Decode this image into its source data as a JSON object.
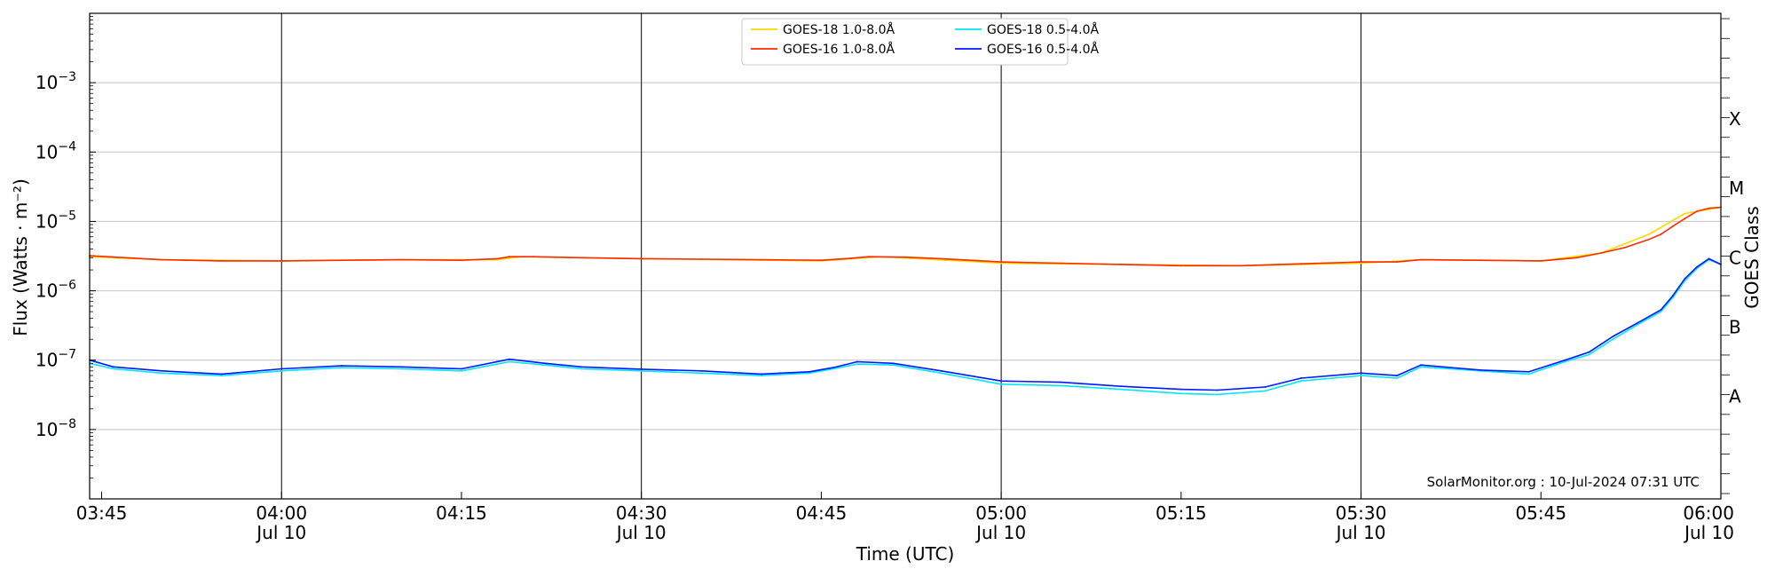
{
  "chart_data": {
    "type": "line",
    "title": "",
    "xlabel": "Time (UTC)",
    "ylabel": "Flux (Watts · m⁻²)",
    "right_ylabel": "GOES Class",
    "yscale": "log",
    "ylim": [
      1e-09,
      0.01
    ],
    "xlim": [
      "2024-07-10 03:44",
      "2024-07-10 06:00"
    ],
    "grid": "horizontal",
    "legend_position": "top-center",
    "x_ticks": [
      {
        "t": "2024-07-10 03:45",
        "label": "03:45",
        "sub": ""
      },
      {
        "t": "2024-07-10 04:00",
        "label": "04:00",
        "sub": "Jul 10"
      },
      {
        "t": "2024-07-10 04:15",
        "label": "04:15",
        "sub": ""
      },
      {
        "t": "2024-07-10 04:30",
        "label": "04:30",
        "sub": "Jul 10"
      },
      {
        "t": "2024-07-10 04:45",
        "label": "04:45",
        "sub": ""
      },
      {
        "t": "2024-07-10 05:00",
        "label": "05:00",
        "sub": "Jul 10"
      },
      {
        "t": "2024-07-10 05:15",
        "label": "05:15",
        "sub": ""
      },
      {
        "t": "2024-07-10 05:30",
        "label": "05:30",
        "sub": "Jul 10"
      },
      {
        "t": "2024-07-10 05:45",
        "label": "05:45",
        "sub": ""
      },
      {
        "t": "2024-07-10 06:00",
        "label": "06:00",
        "sub": "Jul 10"
      }
    ],
    "y_ticks": [
      {
        "value": 1e-08,
        "mant": "10",
        "exp": "−8"
      },
      {
        "value": 1e-07,
        "mant": "10",
        "exp": "−7"
      },
      {
        "value": 1e-06,
        "mant": "10",
        "exp": "−6"
      },
      {
        "value": 1e-05,
        "mant": "10",
        "exp": "−5"
      },
      {
        "value": 0.0001,
        "mant": "10",
        "exp": "−4"
      },
      {
        "value": 0.001,
        "mant": "10",
        "exp": "−3"
      }
    ],
    "vlines": [
      "2024-07-10 04:00",
      "2024-07-10 04:30",
      "2024-07-10 05:00",
      "2024-07-10 05:30",
      "2024-07-10 06:00"
    ],
    "class_labels": [
      {
        "label": "A",
        "at": 3e-08
      },
      {
        "label": "B",
        "at": 3e-07
      },
      {
        "label": "C",
        "at": 3e-06
      },
      {
        "label": "M",
        "at": 3e-05
      },
      {
        "label": "X",
        "at": 0.0003
      }
    ],
    "annotation": "SolarMonitor.org : 10-Jul-2024 07:31 UTC",
    "series": [
      {
        "name": "GOES-18 1.0-8.0Å",
        "color": "#ffd700",
        "x": [
          "2024-07-10 03:44",
          "2024-07-10 03:50",
          "2024-07-10 04:00",
          "2024-07-10 04:10",
          "2024-07-10 04:18",
          "2024-07-10 04:20",
          "2024-07-10 04:30",
          "2024-07-10 04:45",
          "2024-07-10 04:50",
          "2024-07-10 05:00",
          "2024-07-10 05:10",
          "2024-07-10 05:20",
          "2024-07-10 05:25",
          "2024-07-10 05:30",
          "2024-07-10 05:35",
          "2024-07-10 05:45",
          "2024-07-10 05:50",
          "2024-07-10 05:54",
          "2024-07-10 05:57",
          "2024-07-10 06:00"
        ],
        "y": [
          3.1e-06,
          2.8e-06,
          2.7e-06,
          2.8e-06,
          2.8e-06,
          3.1e-06,
          2.9e-06,
          2.7e-06,
          3.1e-06,
          2.5e-06,
          2.4e-06,
          2.3e-06,
          2.4e-06,
          2.5e-06,
          2.8e-06,
          2.7e-06,
          3.5e-06,
          6.5e-06,
          1.3e-05,
          1.6e-05
        ]
      },
      {
        "name": "GOES-16 1.0-8.0Å",
        "color": "#ff2a00",
        "x": [
          "2024-07-10 03:44",
          "2024-07-10 03:47",
          "2024-07-10 03:50",
          "2024-07-10 03:55",
          "2024-07-10 04:00",
          "2024-07-10 04:05",
          "2024-07-10 04:10",
          "2024-07-10 04:15",
          "2024-07-10 04:18",
          "2024-07-10 04:19",
          "2024-07-10 04:21",
          "2024-07-10 04:25",
          "2024-07-10 04:30",
          "2024-07-10 04:35",
          "2024-07-10 04:40",
          "2024-07-10 04:45",
          "2024-07-10 04:47",
          "2024-07-10 04:49",
          "2024-07-10 04:52",
          "2024-07-10 04:55",
          "2024-07-10 05:00",
          "2024-07-10 05:05",
          "2024-07-10 05:10",
          "2024-07-10 05:15",
          "2024-07-10 05:20",
          "2024-07-10 05:25",
          "2024-07-10 05:30",
          "2024-07-10 05:33",
          "2024-07-10 05:35",
          "2024-07-10 05:40",
          "2024-07-10 05:45",
          "2024-07-10 05:48",
          "2024-07-10 05:50",
          "2024-07-10 05:52",
          "2024-07-10 05:54",
          "2024-07-10 05:55",
          "2024-07-10 05:56",
          "2024-07-10 05:57",
          "2024-07-10 05:58",
          "2024-07-10 05:59",
          "2024-07-10 06:00"
        ],
        "y": [
          3.2e-06,
          3e-06,
          2.8e-06,
          2.7e-06,
          2.7e-06,
          2.75e-06,
          2.8e-06,
          2.75e-06,
          2.9e-06,
          3.1e-06,
          3.1e-06,
          3e-06,
          2.9e-06,
          2.85e-06,
          2.8e-06,
          2.75e-06,
          2.9e-06,
          3.1e-06,
          3.05e-06,
          2.9e-06,
          2.6e-06,
          2.5e-06,
          2.4e-06,
          2.3e-06,
          2.3e-06,
          2.45e-06,
          2.6e-06,
          2.6e-06,
          2.8e-06,
          2.75e-06,
          2.7e-06,
          3e-06,
          3.5e-06,
          4.2e-06,
          5.5e-06,
          6.5e-06,
          8.5e-06,
          1.1e-05,
          1.4e-05,
          1.55e-05,
          1.6e-05
        ]
      },
      {
        "name": "GOES-18 0.5-4.0Å",
        "color": "#00e5ff",
        "x": [
          "2024-07-10 03:44",
          "2024-07-10 03:46",
          "2024-07-10 03:50",
          "2024-07-10 03:55",
          "2024-07-10 04:00",
          "2024-07-10 04:05",
          "2024-07-10 04:10",
          "2024-07-10 04:15",
          "2024-07-10 04:19",
          "2024-07-10 04:22",
          "2024-07-10 04:25",
          "2024-07-10 04:30",
          "2024-07-10 04:35",
          "2024-07-10 04:40",
          "2024-07-10 04:44",
          "2024-07-10 04:46",
          "2024-07-10 04:48",
          "2024-07-10 04:51",
          "2024-07-10 04:55",
          "2024-07-10 05:00",
          "2024-07-10 05:05",
          "2024-07-10 05:10",
          "2024-07-10 05:15",
          "2024-07-10 05:18",
          "2024-07-10 05:22",
          "2024-07-10 05:25",
          "2024-07-10 05:30",
          "2024-07-10 05:33",
          "2024-07-10 05:35",
          "2024-07-10 05:40",
          "2024-07-10 05:44",
          "2024-07-10 05:47",
          "2024-07-10 05:49",
          "2024-07-10 05:51",
          "2024-07-10 05:53",
          "2024-07-10 05:55",
          "2024-07-10 05:56",
          "2024-07-10 05:57",
          "2024-07-10 05:58",
          "2024-07-10 05:59",
          "2024-07-10 06:00"
        ],
        "y": [
          9e-08,
          7.5e-08,
          6.5e-08,
          6e-08,
          7e-08,
          7.8e-08,
          7.5e-08,
          7e-08,
          9.5e-08,
          8.5e-08,
          7.5e-08,
          7e-08,
          6.5e-08,
          6e-08,
          6.5e-08,
          7.5e-08,
          8.8e-08,
          8.5e-08,
          6.5e-08,
          4.5e-08,
          4.3e-08,
          3.8e-08,
          3.3e-08,
          3.2e-08,
          3.6e-08,
          5e-08,
          6e-08,
          5.5e-08,
          8e-08,
          7e-08,
          6.3e-08,
          9.5e-08,
          1.2e-07,
          2e-07,
          3.2e-07,
          5e-07,
          8e-07,
          1.4e-06,
          2.1e-06,
          2.8e-06,
          2.4e-06
        ]
      },
      {
        "name": "GOES-16 0.5-4.0Å",
        "color": "#0018ff",
        "x": [
          "2024-07-10 03:44",
          "2024-07-10 03:46",
          "2024-07-10 03:50",
          "2024-07-10 03:55",
          "2024-07-10 04:00",
          "2024-07-10 04:05",
          "2024-07-10 04:10",
          "2024-07-10 04:15",
          "2024-07-10 04:19",
          "2024-07-10 04:22",
          "2024-07-10 04:25",
          "2024-07-10 04:30",
          "2024-07-10 04:35",
          "2024-07-10 04:40",
          "2024-07-10 04:44",
          "2024-07-10 04:46",
          "2024-07-10 04:48",
          "2024-07-10 04:51",
          "2024-07-10 04:55",
          "2024-07-10 05:00",
          "2024-07-10 05:05",
          "2024-07-10 05:10",
          "2024-07-10 05:15",
          "2024-07-10 05:18",
          "2024-07-10 05:22",
          "2024-07-10 05:25",
          "2024-07-10 05:30",
          "2024-07-10 05:33",
          "2024-07-10 05:35",
          "2024-07-10 05:40",
          "2024-07-10 05:44",
          "2024-07-10 05:47",
          "2024-07-10 05:49",
          "2024-07-10 05:51",
          "2024-07-10 05:53",
          "2024-07-10 05:55",
          "2024-07-10 05:56",
          "2024-07-10 05:57",
          "2024-07-10 05:58",
          "2024-07-10 05:59",
          "2024-07-10 06:00"
        ],
        "y": [
          1e-07,
          8e-08,
          7e-08,
          6.3e-08,
          7.5e-08,
          8.3e-08,
          8e-08,
          7.5e-08,
          1.03e-07,
          9e-08,
          8e-08,
          7.4e-08,
          7e-08,
          6.3e-08,
          6.8e-08,
          7.8e-08,
          9.5e-08,
          9e-08,
          7e-08,
          5e-08,
          4.8e-08,
          4.2e-08,
          3.8e-08,
          3.7e-08,
          4.1e-08,
          5.5e-08,
          6.5e-08,
          6e-08,
          8.5e-08,
          7.2e-08,
          6.8e-08,
          1e-07,
          1.3e-07,
          2.2e-07,
          3.4e-07,
          5.3e-07,
          8.5e-07,
          1.5e-06,
          2.2e-06,
          2.9e-06,
          2.4e-06
        ]
      }
    ]
  }
}
